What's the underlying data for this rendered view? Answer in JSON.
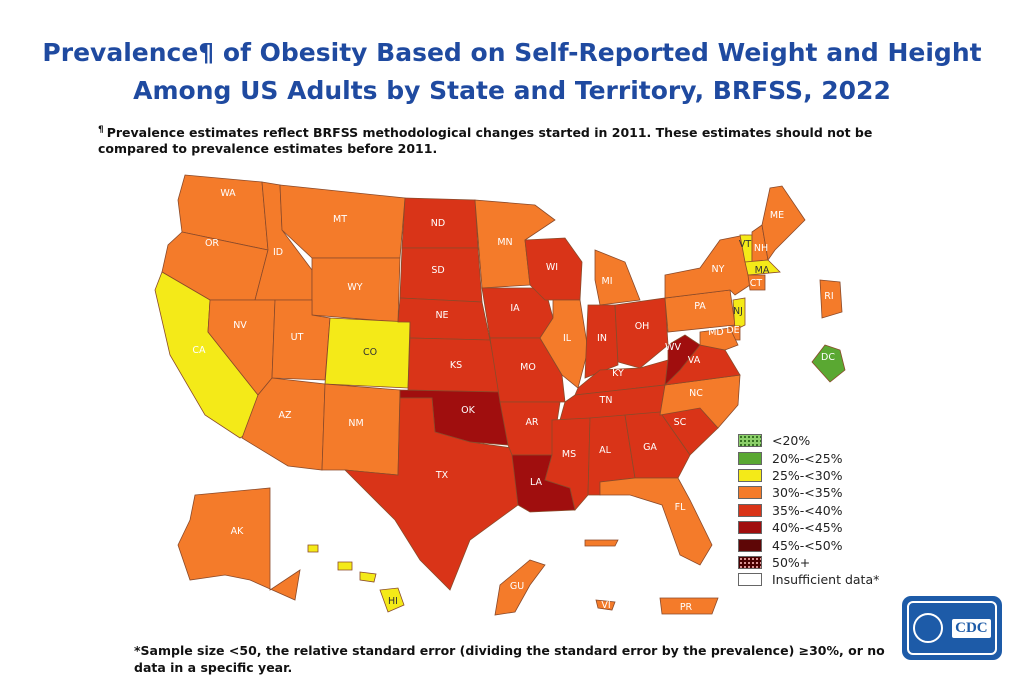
{
  "title": {
    "line1": "Prevalence¶ of Obesity Based on Self-Reported Weight and Height",
    "line2": "Among US Adults by State and Territory, BRFSS, 2022"
  },
  "note_top": {
    "mark": "¶",
    "text": "Prevalence estimates reflect BRFSS methodological changes started in 2011. These estimates should not be compared to prevalence estimates before 2011."
  },
  "note_bottom": "*Sample size <50, the relative standard error (dividing the standard error by the prevalence) ≥30%, or no data in a specific year.",
  "colors": {
    "lt20": "#8ccf6a",
    "c20_25": "#5aa832",
    "c25_30": "#f4ea18",
    "c30_35": "#f47b2a",
    "c35_40": "#d93418",
    "c40_45": "#a00e0e",
    "c45_50": "#5e0606",
    "c50plus": "#4a0000",
    "insufficient": "#ffffff"
  },
  "legend": [
    {
      "label": "<20%",
      "color": "#8ccf6a"
    },
    {
      "label": "20%-<25%",
      "color": "#5aa832"
    },
    {
      "label": "25%-<30%",
      "color": "#f4ea18"
    },
    {
      "label": "30%-<35%",
      "color": "#f47b2a"
    },
    {
      "label": "35%-<40%",
      "color": "#d93418"
    },
    {
      "label": "40%-<45%",
      "color": "#a00e0e"
    },
    {
      "label": "45%-<50%",
      "color": "#5e0606"
    },
    {
      "label": "50%+",
      "color": "#4a0000"
    },
    {
      "label": "Insufficient data*",
      "color": "#ffffff"
    }
  ],
  "states": {
    "WA": "WA",
    "OR": "OR",
    "CA": "CA",
    "ID": "ID",
    "NV": "NV",
    "MT": "MT",
    "WY": "WY",
    "UT": "UT",
    "CO": "CO",
    "AZ": "AZ",
    "NM": "NM",
    "ND": "ND",
    "SD": "SD",
    "NE": "NE",
    "KS": "KS",
    "OK": "OK",
    "TX": "TX",
    "MN": "MN",
    "IA": "IA",
    "MO": "MO",
    "AR": "AR",
    "LA": "LA",
    "WI": "WI",
    "IL": "IL",
    "MI": "MI",
    "IN": "IN",
    "OH": "OH",
    "KY": "KY",
    "TN": "TN",
    "MS": "MS",
    "AL": "AL",
    "GA": "GA",
    "FL": "FL",
    "SC": "SC",
    "NC": "NC",
    "VA": "VA",
    "WV": "WV",
    "PA": "PA",
    "NY": "NY",
    "VT": "VT",
    "NH": "NH",
    "ME": "ME",
    "MA": "MA",
    "RI": "RI",
    "CT": "CT",
    "NJ": "NJ",
    "DE": "DE",
    "MD": "MD",
    "DC": "DC",
    "AK": "AK",
    "HI": "HI",
    "GU": "GU",
    "PR": "PR",
    "VI": "VI"
  },
  "logo": "CDC"
}
